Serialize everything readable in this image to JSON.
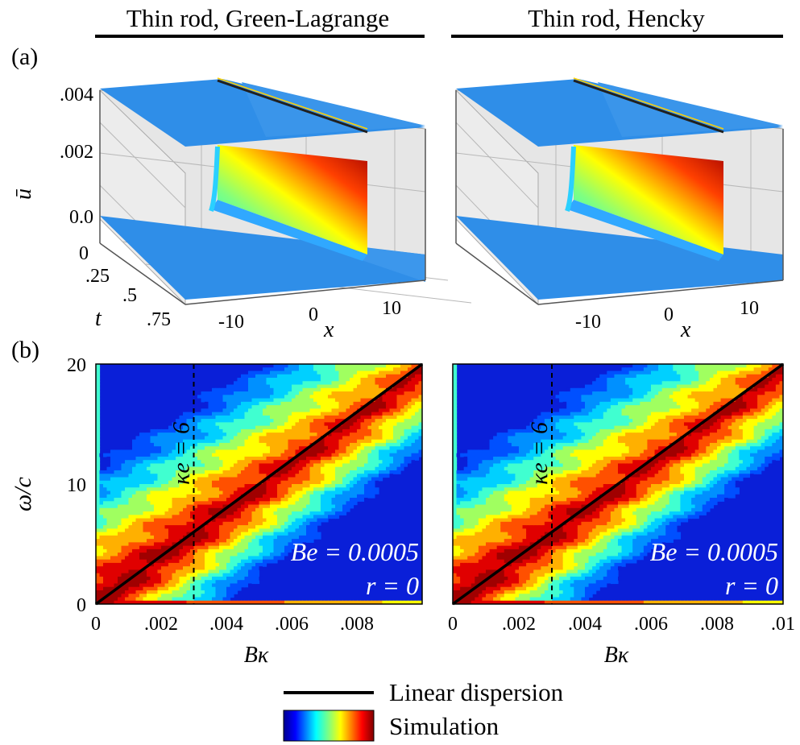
{
  "figure": {
    "column_titles": [
      "Thin rod, Green-Lagrange",
      "Thin rod, Hencky"
    ],
    "panel_labels": [
      "(a)",
      "(b)"
    ]
  },
  "chart_data": [
    {
      "id": "a-left",
      "type": "surface3d",
      "title": "Thin rod, Green-Lagrange",
      "xlabel": "x",
      "ylabel": "t",
      "zlabel": "ū",
      "x_ticks": [
        "-10",
        "0",
        "10"
      ],
      "t_ticks": [
        "0",
        ".25",
        ".5",
        ".75"
      ],
      "z_ticks": [
        ".004",
        ".002",
        "0.0"
      ],
      "xlim": [
        -15,
        15
      ],
      "tlim": [
        0,
        1
      ],
      "zlim": [
        0,
        0.004
      ],
      "pulse": {
        "x_start": -4,
        "x_end": 6,
        "amplitude": 0.0035,
        "profile": "linear ramp"
      }
    },
    {
      "id": "a-right",
      "type": "surface3d",
      "title": "Thin rod, Hencky",
      "xlabel": "x",
      "x_ticks": [
        "-10",
        "0",
        "10"
      ],
      "xlim": [
        -15,
        15
      ],
      "tlim": [
        0,
        1
      ],
      "zlim": [
        0,
        0.004
      ],
      "pulse": {
        "x_start": -4,
        "x_end": 6,
        "amplitude": 0.0035,
        "profile": "linear ramp"
      }
    },
    {
      "id": "b-left",
      "type": "heatmap",
      "xlabel": "Bκ",
      "ylabel": "ω/c",
      "xlim": [
        0,
        0.01
      ],
      "ylim": [
        0,
        20
      ],
      "x_ticks": [
        "0",
        ".002",
        ".004",
        ".006",
        ".008"
      ],
      "x_tick_values": [
        0,
        0.002,
        0.004,
        0.006,
        0.008
      ],
      "y_ticks": [
        "0",
        "10",
        "20"
      ],
      "y_tick_values": [
        0,
        10,
        20
      ],
      "linear_dispersion": {
        "x": [
          0,
          0.01
        ],
        "y": [
          0,
          20
        ]
      },
      "kappa_e_line": {
        "x": 0.003,
        "label": "κe = 6"
      },
      "annotations": [
        "Be = 0.0005",
        "r = 0"
      ]
    },
    {
      "id": "b-right",
      "type": "heatmap",
      "xlabel": "Bκ",
      "xlim": [
        0,
        0.01
      ],
      "ylim": [
        0,
        20
      ],
      "x_ticks": [
        "0",
        ".002",
        ".004",
        ".006",
        ".008",
        ".01"
      ],
      "x_tick_values": [
        0,
        0.002,
        0.004,
        0.006,
        0.008,
        0.01
      ],
      "linear_dispersion": {
        "x": [
          0,
          0.01
        ],
        "y": [
          0,
          20
        ]
      },
      "kappa_e_line": {
        "x": 0.003,
        "label": "κe = 6"
      },
      "annotations": [
        "Be = 0.0005",
        "r = 0"
      ]
    }
  ],
  "legend": {
    "items": [
      {
        "label": "Linear dispersion",
        "kind": "line",
        "color": "#000000"
      },
      {
        "label": "Simulation",
        "kind": "colormap",
        "colormap": "jet"
      }
    ]
  },
  "colors": {
    "surface_flat": "#2f8ee8",
    "wall": "#e6e6e6",
    "contour_bg": "#0a1fd8",
    "jet": [
      "#00008f",
      "#0000ff",
      "#0080ff",
      "#00ffff",
      "#80ff80",
      "#ffff00",
      "#ff8000",
      "#ff0000",
      "#800000"
    ]
  }
}
